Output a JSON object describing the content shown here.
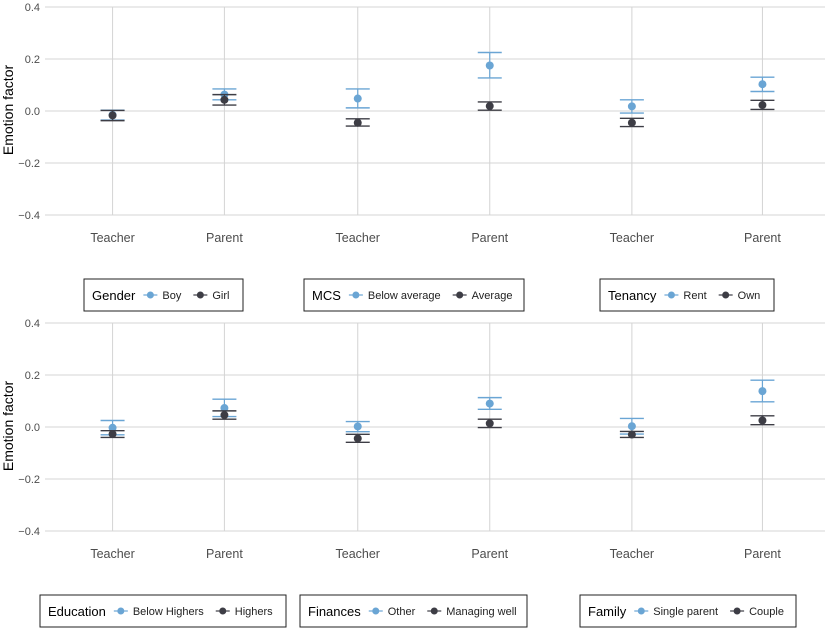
{
  "chart_data": {
    "type": "scatter",
    "ylabel": "Emotion factor",
    "ylim": [
      -0.4,
      0.4
    ],
    "yticks": [
      -0.4,
      -0.2,
      0.0,
      0.2,
      0.4
    ],
    "ytick_labels": [
      "−0.4",
      "−0.2",
      "0.0",
      "0.2",
      "0.4"
    ],
    "categories": [
      "Teacher",
      "Parent"
    ],
    "grid": true,
    "colors": {
      "light": "#6aa5d4",
      "dark": "#3d3d45"
    },
    "rows": [
      {
        "panels": [
          {
            "legend_title": "Gender",
            "series": [
              {
                "name": "Boy",
                "color": "light",
                "y": [
                  -0.015,
                  0.063
                ],
                "lo": [
                  -0.035,
                  0.043
                ],
                "hi": [
                  0.003,
                  0.085
                ]
              },
              {
                "name": "Girl",
                "color": "dark",
                "y": [
                  -0.017,
                  0.043
                ],
                "lo": [
                  -0.037,
                  0.023
                ],
                "hi": [
                  0.002,
                  0.063
                ]
              }
            ]
          },
          {
            "legend_title": "MCS",
            "series": [
              {
                "name": "Below average",
                "color": "light",
                "y": [
                  0.048,
                  0.175
                ],
                "lo": [
                  0.012,
                  0.127
                ],
                "hi": [
                  0.085,
                  0.225
                ]
              },
              {
                "name": "Average",
                "color": "dark",
                "y": [
                  -0.045,
                  0.019
                ],
                "lo": [
                  -0.058,
                  0.003
                ],
                "hi": [
                  -0.03,
                  0.035
                ]
              }
            ]
          },
          {
            "legend_title": "Tenancy",
            "series": [
              {
                "name": "Rent",
                "color": "light",
                "y": [
                  0.018,
                  0.103
                ],
                "lo": [
                  -0.008,
                  0.075
                ],
                "hi": [
                  0.043,
                  0.13
                ]
              },
              {
                "name": "Own",
                "color": "dark",
                "y": [
                  -0.045,
                  0.023
                ],
                "lo": [
                  -0.06,
                  0.006
                ],
                "hi": [
                  -0.028,
                  0.041
                ]
              }
            ]
          }
        ]
      },
      {
        "panels": [
          {
            "legend_title": "Education",
            "series": [
              {
                "name": "Below Highers",
                "color": "light",
                "y": [
                  -0.003,
                  0.073
                ],
                "lo": [
                  -0.03,
                  0.04
                ],
                "hi": [
                  0.025,
                  0.107
                ]
              },
              {
                "name": "Highers",
                "color": "dark",
                "y": [
                  -0.027,
                  0.046
                ],
                "lo": [
                  -0.04,
                  0.03
                ],
                "hi": [
                  -0.014,
                  0.062
                ]
              }
            ]
          },
          {
            "legend_title": "Finances",
            "series": [
              {
                "name": "Other",
                "color": "light",
                "y": [
                  0.002,
                  0.09
                ],
                "lo": [
                  -0.018,
                  0.068
                ],
                "hi": [
                  0.021,
                  0.113
                ]
              },
              {
                "name": "Managing well",
                "color": "dark",
                "y": [
                  -0.044,
                  0.014
                ],
                "lo": [
                  -0.059,
                  -0.002
                ],
                "hi": [
                  -0.028,
                  0.03
                ]
              }
            ]
          },
          {
            "legend_title": "Family",
            "series": [
              {
                "name": "Single parent",
                "color": "light",
                "y": [
                  0.003,
                  0.138
                ],
                "lo": [
                  -0.027,
                  0.097
                ],
                "hi": [
                  0.033,
                  0.18
                ]
              },
              {
                "name": "Couple",
                "color": "dark",
                "y": [
                  -0.029,
                  0.025
                ],
                "lo": [
                  -0.04,
                  0.009
                ],
                "hi": [
                  -0.017,
                  0.043
                ]
              }
            ]
          }
        ]
      }
    ]
  }
}
